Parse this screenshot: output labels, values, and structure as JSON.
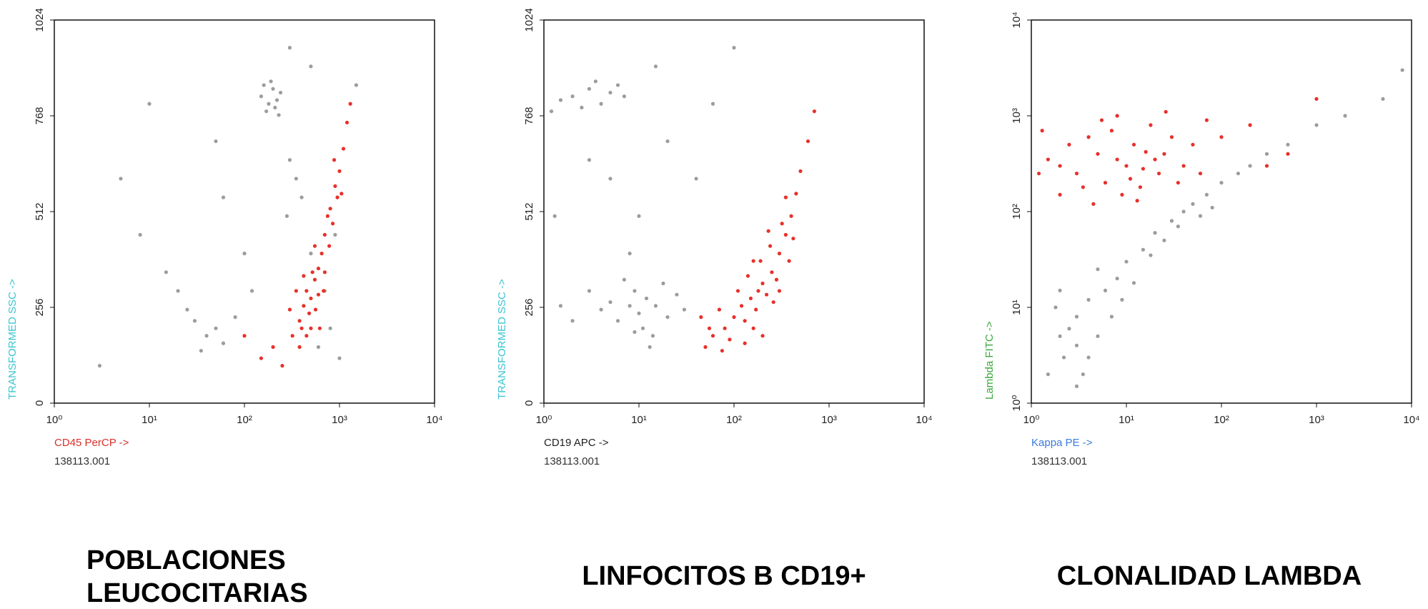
{
  "chart_data": [
    {
      "type": "scatter",
      "xscale": "log",
      "yscale": "linear",
      "xlabel": "CD45 PerCP ->",
      "xlabel_color": "#d9302a",
      "ylabel": "TRANSFORMED SSC ->",
      "ylabel_color": "#3cc4d2",
      "sample_id": "138113.001",
      "caption": [
        "POBLACIONES",
        "LEUCOCITARIAS"
      ],
      "xlim": [
        1,
        10000
      ],
      "ylim": [
        0,
        1024
      ],
      "xticks": [
        {
          "value": 1,
          "label": "10⁰"
        },
        {
          "value": 10,
          "label": "10¹"
        },
        {
          "value": 100,
          "label": "10²"
        },
        {
          "value": 1000,
          "label": "10³"
        },
        {
          "value": 10000,
          "label": "10⁴"
        }
      ],
      "yticks": [
        0,
        256,
        512,
        768,
        1024
      ],
      "series": [
        {
          "color": "#9c9c9c",
          "x": [
            150,
            180,
            200,
            220,
            170,
            240,
            160,
            210,
            190,
            230,
            350,
            300,
            400,
            280,
            500,
            700,
            800,
            600,
            900,
            1000,
            30,
            40,
            25,
            50,
            60,
            20,
            35,
            15,
            80,
            100,
            5,
            10,
            8,
            50,
            300,
            120,
            3,
            60,
            500,
            1500
          ],
          "values": [
            820,
            800,
            840,
            810,
            780,
            830,
            850,
            790,
            860,
            770,
            600,
            650,
            550,
            500,
            400,
            300,
            200,
            150,
            450,
            120,
            220,
            180,
            250,
            200,
            160,
            300,
            140,
            350,
            230,
            400,
            600,
            800,
            450,
            700,
            950,
            300,
            100,
            550,
            900,
            850
          ]
        },
        {
          "color": "#e8302a",
          "x": [
            320,
            380,
            420,
            450,
            500,
            550,
            600,
            480,
            400,
            520,
            650,
            700,
            750,
            800,
            900,
            1000,
            1100,
            1200,
            850,
            950,
            350,
            300,
            560,
            700,
            620,
            200,
            150,
            250,
            100,
            1300,
            380,
            450,
            680,
            780,
            1050,
            880,
            550,
            420,
            600,
            500
          ],
          "values": [
            180,
            220,
            260,
            300,
            280,
            330,
            360,
            240,
            200,
            350,
            400,
            450,
            500,
            520,
            580,
            620,
            680,
            750,
            480,
            550,
            300,
            250,
            250,
            350,
            200,
            150,
            120,
            100,
            180,
            800,
            150,
            180,
            300,
            420,
            560,
            650,
            420,
            340,
            290,
            200
          ]
        }
      ]
    },
    {
      "type": "scatter",
      "xscale": "log",
      "yscale": "linear",
      "xlabel": "CD19 APC ->",
      "xlabel_color": "#222222",
      "ylabel": "TRANSFORMED SSC ->",
      "ylabel_color": "#3cc4d2",
      "sample_id": "138113.001",
      "caption": [
        "LINFOCITOS B CD19+"
      ],
      "xlim": [
        1,
        10000
      ],
      "ylim": [
        0,
        1024
      ],
      "xticks": [
        {
          "value": 1,
          "label": "10⁰"
        },
        {
          "value": 10,
          "label": "10¹"
        },
        {
          "value": 100,
          "label": "10²"
        },
        {
          "value": 1000,
          "label": "10³"
        },
        {
          "value": 10000,
          "label": "10⁴"
        }
      ],
      "yticks": [
        0,
        256,
        512,
        768,
        1024
      ],
      "series": [
        {
          "color": "#9c9c9c",
          "x": [
            2,
            3,
            4,
            5,
            1.5,
            2.5,
            6,
            3.5,
            1.2,
            7,
            8,
            10,
            12,
            6,
            15,
            9,
            20,
            5,
            11,
            4,
            3,
            2,
            25,
            14,
            7,
            1.5,
            30,
            18,
            13,
            9,
            5,
            10,
            3,
            20,
            8,
            40,
            1.3,
            15,
            60,
            100
          ],
          "values": [
            820,
            840,
            800,
            830,
            810,
            790,
            850,
            860,
            780,
            820,
            260,
            240,
            280,
            220,
            260,
            300,
            230,
            270,
            200,
            250,
            300,
            220,
            290,
            180,
            330,
            260,
            250,
            320,
            150,
            190,
            600,
            500,
            650,
            700,
            400,
            600,
            500,
            900,
            800,
            950
          ]
        },
        {
          "color": "#e8302a",
          "x": [
            50,
            60,
            80,
            100,
            120,
            150,
            180,
            200,
            250,
            300,
            350,
            400,
            450,
            500,
            600,
            90,
            130,
            170,
            220,
            280,
            110,
            140,
            190,
            240,
            320,
            70,
            160,
            260,
            380,
            420,
            45,
            55,
            75,
            200,
            300,
            160,
            230,
            350,
            700,
            130
          ],
          "values": [
            150,
            180,
            200,
            230,
            260,
            280,
            300,
            320,
            350,
            400,
            450,
            500,
            560,
            620,
            700,
            170,
            220,
            250,
            290,
            330,
            300,
            340,
            380,
            420,
            480,
            250,
            200,
            270,
            380,
            440,
            230,
            200,
            140,
            180,
            300,
            380,
            460,
            550,
            780,
            160
          ]
        }
      ]
    },
    {
      "type": "scatter",
      "xscale": "log",
      "yscale": "log",
      "xlabel": "Kappa PE ->",
      "xlabel_color": "#3a7be0",
      "ylabel": "Lambda FITC ->",
      "ylabel_color": "#3aa83a",
      "sample_id": "138113.001",
      "caption": [
        "CLONALIDAD LAMBDA"
      ],
      "xlim": [
        1,
        10000
      ],
      "ylim": [
        1,
        10000
      ],
      "xticks": [
        {
          "value": 1,
          "label": "10⁰"
        },
        {
          "value": 10,
          "label": "10¹"
        },
        {
          "value": 100,
          "label": "10²"
        },
        {
          "value": 1000,
          "label": "10³"
        },
        {
          "value": 10000,
          "label": "10⁴"
        }
      ],
      "yticks": [
        {
          "value": 1,
          "label": "10⁰"
        },
        {
          "value": 10,
          "label": "10¹"
        },
        {
          "value": 100,
          "label": "10²"
        },
        {
          "value": 1000,
          "label": "10³"
        },
        {
          "value": 10000,
          "label": "10⁴"
        }
      ],
      "series": [
        {
          "color": "#9c9c9c",
          "x": [
            2,
            3,
            2.5,
            4,
            3,
            1.8,
            5,
            2.2,
            3.5,
            4,
            6,
            8,
            10,
            15,
            20,
            30,
            40,
            50,
            70,
            100,
            150,
            200,
            300,
            500,
            1000,
            2000,
            5000,
            8000,
            25,
            60,
            1.5,
            2,
            7,
            12,
            5,
            3,
            9,
            18,
            35,
            80
          ],
          "values": [
            5,
            4,
            6,
            3,
            8,
            10,
            5,
            3,
            2,
            12,
            15,
            20,
            30,
            40,
            60,
            80,
            100,
            120,
            150,
            200,
            250,
            300,
            400,
            500,
            800,
            1000,
            1500,
            3000,
            50,
            90,
            2,
            15,
            8,
            18,
            25,
            1.5,
            12,
            35,
            70,
            110
          ]
        },
        {
          "color": "#e8302a",
          "x": [
            2,
            3,
            5,
            8,
            10,
            12,
            15,
            20,
            6,
            4,
            1.5,
            1.2,
            2.5,
            7,
            9,
            14,
            25,
            30,
            40,
            18,
            11,
            16,
            3.5,
            5.5,
            22,
            50,
            1.3,
            2,
            8,
            60,
            100,
            200,
            500,
            1000,
            300,
            13,
            35,
            4.5,
            26,
            70
          ],
          "values": [
            300,
            250,
            400,
            350,
            300,
            500,
            280,
            350,
            200,
            600,
            350,
            250,
            500,
            700,
            150,
            180,
            400,
            600,
            300,
            800,
            220,
            420,
            180,
            900,
            250,
            500,
            700,
            150,
            1000,
            250,
            600,
            800,
            400,
            1500,
            300,
            130,
            200,
            120,
            1100,
            900
          ]
        }
      ]
    }
  ]
}
